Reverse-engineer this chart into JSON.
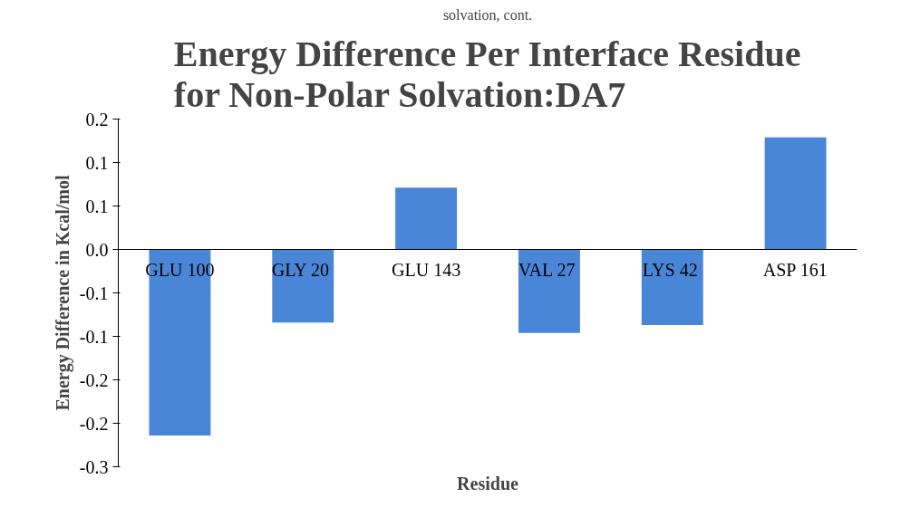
{
  "chart_data": {
    "type": "bar",
    "title": "Energy Difference Per Interface Residue for Non-Polar Solvation:DA7",
    "xlabel": "Residue",
    "ylabel": "Energy Difference in Kcal/mol",
    "annotations": [
      "solvation, cont."
    ],
    "categories": [
      "GLU 100",
      "GLY  20",
      "GLU 143",
      "VAL  27",
      "LYS  42",
      "ASP 161"
    ],
    "values": [
      -0.214,
      -0.084,
      0.071,
      -0.096,
      -0.087,
      0.129
    ],
    "color": "#4a86d8",
    "ylim": [
      -0.25,
      0.15
    ],
    "yticks": [
      {
        "value": 0.15,
        "label": "0.2"
      },
      {
        "value": 0.1,
        "label": "0.1"
      },
      {
        "value": 0.05,
        "label": "0.1"
      },
      {
        "value": 0,
        "label": "0.0"
      },
      {
        "value": -0.05,
        "label": "-0.1"
      },
      {
        "value": -0.1,
        "label": "-0.1"
      },
      {
        "value": -0.15,
        "label": "-0.2"
      },
      {
        "value": -0.2,
        "label": "-0.2"
      },
      {
        "value": -0.25,
        "label": "-0.3"
      }
    ],
    "grid": false
  }
}
